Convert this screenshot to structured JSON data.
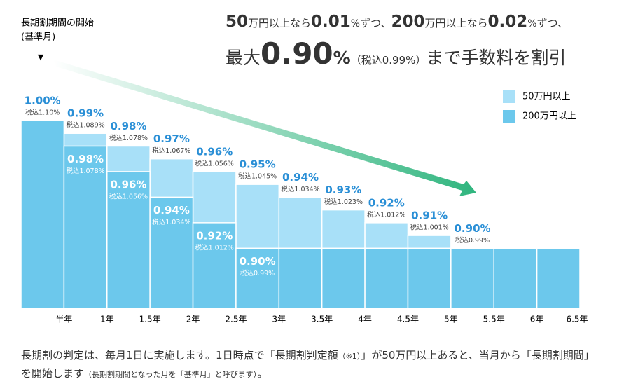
{
  "chart_data": {
    "type": "bar",
    "annotation": [
      "長期割期間の開始",
      "(基準月)",
      "▼"
    ],
    "headline": [
      [
        "50",
        "万円以上なら",
        "0.01",
        "%",
        "ずつ、",
        "200",
        "万円以上なら",
        "0.02",
        "%",
        "ずつ、"
      ],
      [
        "最大",
        "0.90",
        "%",
        "（税込0.99%）",
        "まで手数料を割引"
      ]
    ],
    "categories": [
      "半年",
      "1年",
      "1.5年",
      "2年",
      "2.5年",
      "3年",
      "3.5年",
      "4年",
      "4.5年",
      "5年",
      "5.5年",
      "6年",
      "6.5年"
    ],
    "ylim": [
      0.853,
      1.0
    ],
    "series": [
      {
        "name": "50万円以上",
        "color": "#a8e0f8",
        "values": [
          1.0,
          0.99,
          0.98,
          0.97,
          0.96,
          0.95,
          0.94,
          0.93,
          0.92,
          0.91,
          0.9,
          0.9,
          0.9
        ],
        "value_labels": [
          "1.00%",
          "0.99%",
          "0.98%",
          "0.97%",
          "0.96%",
          "0.95%",
          "0.94%",
          "0.93%",
          "0.92%",
          "0.91%",
          "0.90%",
          null,
          null
        ],
        "tax_labels": [
          "税込1.10%",
          "税込1.089%",
          "税込1.078%",
          "税込1.067%",
          "税込1.056%",
          "税込1.045%",
          "税込1.034%",
          "税込1.023%",
          "税込1.012%",
          "税込1.001%",
          "税込0.99%",
          null,
          null
        ]
      },
      {
        "name": "200万円以上",
        "color": "#6cc8ec",
        "values": [
          1.0,
          0.98,
          0.96,
          0.94,
          0.92,
          0.9,
          0.9,
          0.9,
          0.9,
          0.9,
          0.9,
          0.9,
          0.9
        ],
        "value_labels": [
          null,
          "0.98%",
          "0.96%",
          "0.94%",
          "0.92%",
          "0.90%",
          null,
          null,
          null,
          null,
          null,
          null,
          null
        ],
        "tax_labels": [
          null,
          "税込1.078%",
          "税込1.056%",
          "税込1.034%",
          "税込1.012%",
          "税込0.99%",
          null,
          null,
          null,
          null,
          null,
          null,
          null
        ]
      }
    ],
    "footnote": [
      "長期割の判定は、毎月1日に実施します。1日時点で「長期割判定額",
      "（※1）",
      "」が50万円以上あると、当月から「長期割期間」を開始します",
      "（長期割期間となった月を「基準月」と呼びます）",
      "。"
    ]
  }
}
